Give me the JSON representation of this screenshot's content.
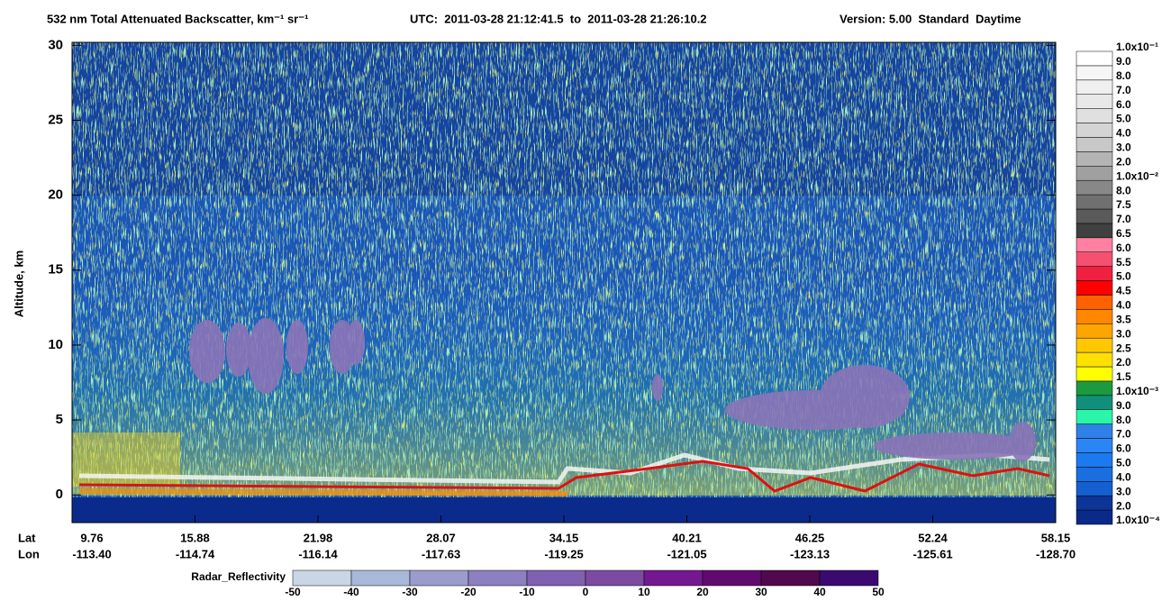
{
  "chart_data": {
    "type": "heatmap",
    "title": "532 nm Total Attenuated Backscatter, km⁻¹ sr⁻¹",
    "time_range": "UTC:  2011-03-28 21:12:41.5  to  2011-03-28 21:26:10.2",
    "version": "Version: 5.00  Standard  Daytime",
    "y_label": "Altitude, km",
    "ylim": [
      -1.85,
      30.2
    ],
    "yticks": [
      0,
      5,
      10,
      15,
      20,
      25,
      30
    ],
    "x_row_labels": [
      "Lat",
      "Lon"
    ],
    "x_lat": [
      "9.76",
      "15.88",
      "21.98",
      "28.07",
      "34.15",
      "40.21",
      "46.25",
      "52.24",
      "58.15"
    ],
    "x_lon": [
      "-113.40",
      "-114.74",
      "-116.14",
      "-117.63",
      "-119.25",
      "-121.05",
      "-123.13",
      "-125.61",
      "-128.70"
    ],
    "colorbar": {
      "labels": [
        "1.0x10⁻⁴",
        "2.0",
        "3.0",
        "4.0",
        "5.0",
        "6.0",
        "7.0",
        "8.0",
        "9.0",
        "1.0x10⁻³",
        "1.5",
        "2.0",
        "2.5",
        "3.0",
        "3.5",
        "4.0",
        "4.5",
        "5.0",
        "5.5",
        "6.0",
        "6.5",
        "7.0",
        "7.5",
        "8.0",
        "1.0x10⁻²",
        "2.0",
        "3.0",
        "4.0",
        "5.0",
        "6.0",
        "7.0",
        "8.0",
        "9.0",
        "1.0x10⁻¹"
      ],
      "colors": [
        "#0a2a8a",
        "#0d3596",
        "#1560d0",
        "#1a6ee0",
        "#1c7af0",
        "#2a86f5",
        "#2f80e8",
        "#2af5a8",
        "#10907a",
        "#1c9a40",
        "#ffff00",
        "#ffe000",
        "#ffc800",
        "#ffa500",
        "#ff8800",
        "#ff6000",
        "#ff0000",
        "#f02040",
        "#f55070",
        "#ff80a0",
        "#404040",
        "#5a5a5a",
        "#707070",
        "#888888",
        "#a0a0a0",
        "#b4b4b4",
        "#c8c8c8",
        "#d4d4d4",
        "#e0e0e0",
        "#e8e8e8",
        "#f0f0f0",
        "#f6f6f6",
        "#ffffff"
      ]
    },
    "radar_colorbar": {
      "label": "Radar_Reflectivity",
      "ticks": [
        -50,
        -40,
        -30,
        -20,
        -10,
        0,
        10,
        20,
        30,
        40,
        50
      ],
      "colors": [
        "#c8d6e6",
        "#a8b8d8",
        "#9a9ccc",
        "#8c80c0",
        "#8060b0",
        "#7c4aa0",
        "#741890",
        "#600a70",
        "#50084e",
        "#3a0a70",
        "#2a0a80"
      ]
    }
  }
}
